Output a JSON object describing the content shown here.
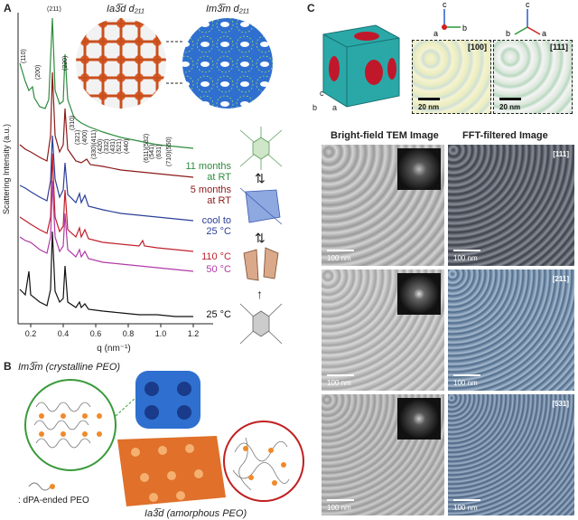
{
  "panel_a": {
    "letter": "A",
    "ylabel": "Scattering Intensity (a.u.)",
    "xlabel": "q (nm⁻¹)",
    "xticks": [
      "0.2",
      "0.4",
      "0.6",
      "0.8",
      "1.0",
      "1.2"
    ],
    "peak_labels": [
      "(211)",
      "(110)",
      "(200)",
      "(220)",
      "(310)",
      "(321)",
      "(400)",
      "(330)(411)",
      "(420)",
      "(332)",
      "(431)",
      "(521)",
      "(440)",
      "(611)(532)",
      "(541)",
      "(631)",
      "(710)(550)"
    ],
    "inset_left_title": "Ia3̅d d₂₁₁",
    "inset_right_title": "Im3̅m d₂₁₁",
    "curves": [
      {
        "label_line1": "11 months",
        "label_line2": "at RT",
        "color": "#2e8b3e"
      },
      {
        "label_line1": "5 months",
        "label_line2": "at RT",
        "color": "#8b1a1a"
      },
      {
        "label_line1": "cool to",
        "label_line2": "25 °C",
        "color": "#2c3f99"
      },
      {
        "label_line1": "110 °C",
        "label_line2": "",
        "color": "#c0202a"
      },
      {
        "label_line1": "50 °C",
        "label_line2": "",
        "color": "#b03aa8"
      },
      {
        "label_line1": "25 °C",
        "label_line2": "",
        "color": "#111111"
      }
    ]
  },
  "panel_b": {
    "letter": "B",
    "top_label": "Im3̅m (crystalline PEO)",
    "legend": ": dPA-ended PEO",
    "bottom_label": "Ia3̅d (amorphous PEO)"
  },
  "panel_c": {
    "letter": "C",
    "orientation_100": "[100]",
    "orientation_111": "[111]",
    "scale_20nm_a": "20 nm",
    "scale_20nm_b": "20 nm",
    "axes_left": [
      "c",
      "b",
      "a"
    ],
    "axes_right": [
      "c",
      "b",
      "a"
    ],
    "col_bf": "Bright-field TEM Image",
    "col_fft": "FFT-filtered Image",
    "rows": [
      {
        "bf_scale": "100 nm",
        "fft_scale": "100 nm",
        "fft_tag": "[111]"
      },
      {
        "bf_scale": "100 nm",
        "fft_scale": "100 nm",
        "fft_tag": "[211]"
      },
      {
        "bf_scale": "100 nm",
        "fft_scale": "100 nm",
        "fft_tag": "[531]"
      }
    ]
  }
}
